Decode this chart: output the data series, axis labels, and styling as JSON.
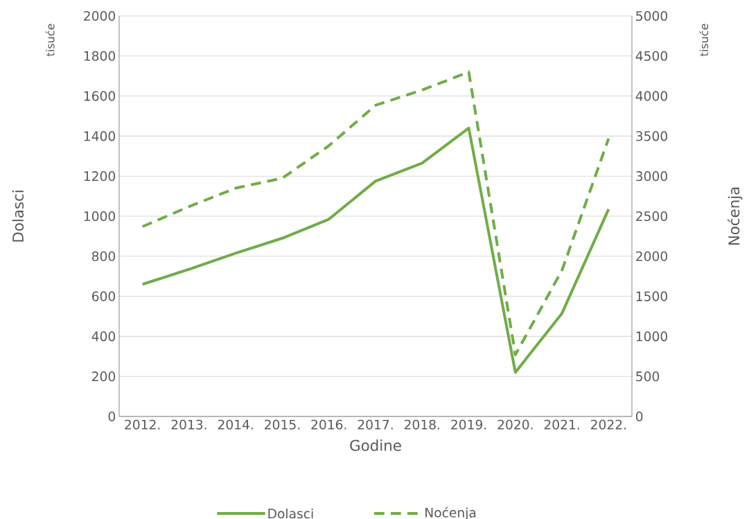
{
  "chart_data": {
    "type": "line",
    "xlabel": "Godine",
    "ylabel": "Dolasci",
    "y2label": "Noćenja",
    "categories": [
      "2012.",
      "2013.",
      "2014.",
      "2015.",
      "2016.",
      "2017.",
      "2018.",
      "2019.",
      "2020.",
      "2021.",
      "2022."
    ],
    "series": [
      {
        "name": "Dolasci",
        "color": "#70ad47",
        "line_style": "solid",
        "values": [
          660,
          735,
          815,
          890,
          985,
          1175,
          1265,
          1440,
          220,
          515,
          1035
        ]
      },
      {
        "name": "Noćenja",
        "color": "#70ad47",
        "line_style": "dashed",
        "axis": "y2",
        "values": [
          2370,
          2620,
          2850,
          2975,
          3380,
          3885,
          4075,
          4300,
          770,
          1825,
          3470
        ]
      }
    ],
    "ylim": [
      0,
      2000
    ],
    "yticks": [
      0,
      200,
      400,
      600,
      800,
      1000,
      1200,
      1400,
      1600,
      1800,
      2000
    ],
    "y2lim": [
      0,
      5000
    ],
    "y2ticks": [
      0,
      500,
      1000,
      1500,
      2000,
      2500,
      3000,
      3500,
      4000,
      4500,
      5000
    ],
    "grid": "y",
    "legend": "bottom",
    "marker": "none",
    "annotations": [
      "tisuće",
      "tisuće"
    ]
  }
}
